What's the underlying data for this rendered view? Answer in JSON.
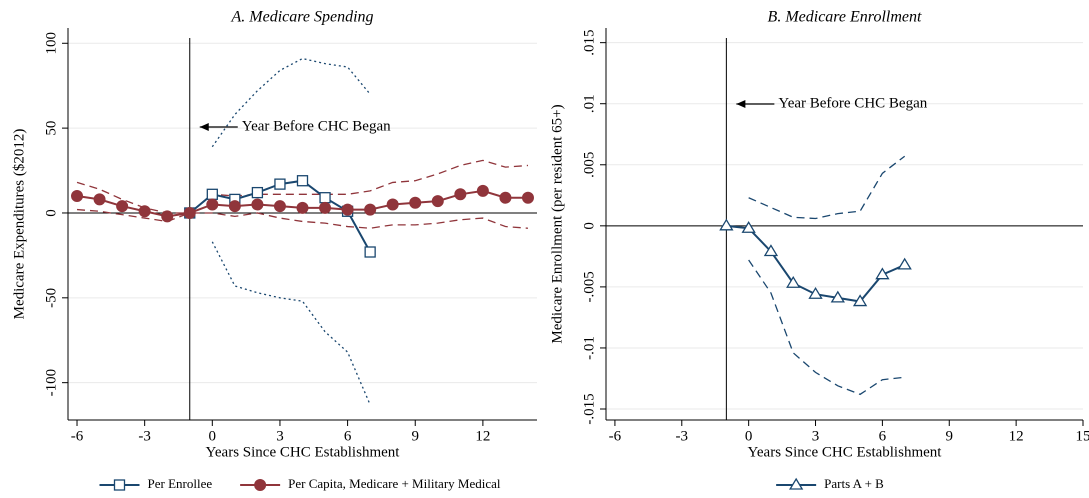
{
  "chart_data": [
    {
      "type": "line",
      "title": "A. Medicare Spending",
      "x_label": "Years Since CHC Establishment",
      "y_label": "Medicare Expenditures ($2012)",
      "annotation": "Year Before CHC Began",
      "vline": -1,
      "hline": 0,
      "grid": true,
      "xlim": [
        -6.4,
        14.4
      ],
      "ylim": [
        -122,
        109
      ],
      "xticks": [
        -6,
        -3,
        0,
        3,
        6,
        9,
        12
      ],
      "yticks": [
        -100,
        -50,
        0,
        50,
        100
      ],
      "x": [
        -6,
        -5,
        -4,
        -3,
        -2,
        -1,
        0,
        1,
        2,
        3,
        4,
        5,
        6,
        7,
        8,
        9,
        10,
        11,
        12,
        13,
        14
      ],
      "series": [
        {
          "color": "#1a476f",
          "style": "dotted",
          "marker": "none",
          "values": [
            null,
            null,
            null,
            null,
            null,
            null,
            39,
            58,
            72,
            84,
            91,
            88,
            86,
            70,
            null,
            null,
            null,
            null,
            null,
            null,
            null
          ]
        },
        {
          "color": "#1a476f",
          "style": "dotted",
          "marker": "none",
          "values": [
            null,
            null,
            null,
            null,
            null,
            null,
            -17,
            -43,
            -47,
            -50,
            -52,
            -70,
            -82,
            -113,
            null,
            null,
            null,
            null,
            null,
            null,
            null
          ]
        },
        {
          "color": "#90353b",
          "style": "dashed",
          "marker": "none",
          "values": [
            18,
            14,
            8,
            3,
            0,
            0,
            11,
            10,
            11,
            11,
            11,
            11,
            11,
            13,
            18,
            19,
            23,
            28,
            31,
            27,
            28
          ]
        },
        {
          "color": "#90353b",
          "style": "dashed",
          "marker": "none",
          "values": [
            2,
            1,
            -1,
            -3,
            -5,
            0,
            0,
            -2,
            0,
            -3,
            -5,
            -6,
            -8,
            -9,
            -7,
            -7,
            -6,
            -4,
            -3,
            -8,
            -9
          ]
        },
        {
          "name": "Per Enrollee",
          "color": "#1a476f",
          "style": "solid",
          "marker": "square",
          "values": [
            null,
            null,
            null,
            null,
            null,
            0,
            11,
            8,
            12,
            17,
            19,
            9,
            1,
            -23,
            null,
            null,
            null,
            null,
            null,
            null,
            null
          ]
        },
        {
          "name": "Per Capita, Medicare + Military Medical",
          "color": "#90353b",
          "style": "solid",
          "marker": "circle",
          "values": [
            10,
            8,
            4,
            1,
            -2,
            0,
            5,
            4,
            5,
            4,
            3,
            3,
            2,
            2,
            5,
            6,
            7,
            11,
            13,
            9,
            9
          ]
        }
      ]
    },
    {
      "type": "line",
      "title": "B. Medicare Enrollment",
      "x_label": "Years Since CHC Establishment",
      "y_label": "Medicare Enrollment (per resident 65+)",
      "annotation": "Year Before CHC Began",
      "vline": -1,
      "hline": 0,
      "grid": true,
      "xlim": [
        -6.4,
        15
      ],
      "ylim": [
        -0.0159,
        0.0162
      ],
      "xticks": [
        -6,
        -3,
        0,
        3,
        6,
        9,
        12,
        15
      ],
      "yticks": [
        {
          "value": -0.015,
          "label": "-.015"
        },
        {
          "value": -0.01,
          "label": "-.01"
        },
        {
          "value": -0.005,
          "label": "-.005"
        },
        0,
        {
          "value": 0.005,
          "label": ".005"
        },
        {
          "value": 0.01,
          "label": ".01"
        },
        {
          "value": 0.015,
          "label": ".015"
        }
      ],
      "x": [
        -1,
        0,
        1,
        2,
        3,
        4,
        5,
        6,
        7
      ],
      "series": [
        {
          "color": "#1a476f",
          "style": "dashed",
          "marker": "none",
          "values": [
            null,
            0.0023,
            0.0015,
            0.0007,
            0.0006,
            0.001,
            0.0012,
            0.0043,
            0.0057
          ]
        },
        {
          "color": "#1a476f",
          "style": "dashed",
          "marker": "none",
          "values": [
            null,
            -0.0028,
            -0.0055,
            -0.0104,
            -0.012,
            -0.0131,
            -0.0138,
            -0.0126,
            -0.0124
          ]
        },
        {
          "name": "Parts A + B",
          "color": "#1a476f",
          "style": "solid",
          "marker": "triangle",
          "values": [
            0,
            -0.0002,
            -0.0021,
            -0.0047,
            -0.0056,
            -0.0059,
            -0.0062,
            -0.004,
            -0.0032
          ]
        }
      ]
    }
  ]
}
